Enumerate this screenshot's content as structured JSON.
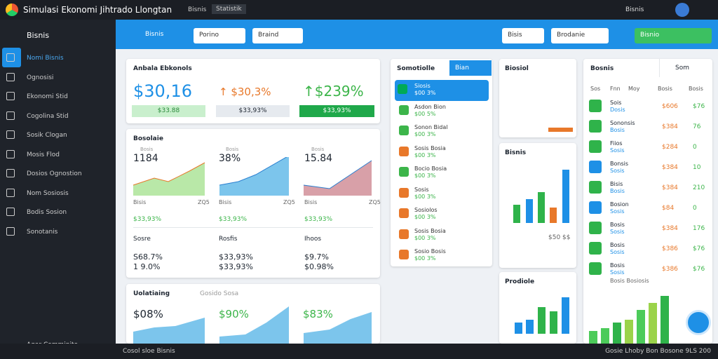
{
  "topbar": {
    "title": "Simulasi Ekonomi Jihtrado Llongtan",
    "tab1": "Bisnis",
    "tab2": "Statistik",
    "user": "Bisnis"
  },
  "sidebar": {
    "header": "Bisnis",
    "items": [
      "Nomi Bisnis",
      "Ognosisi",
      "Ekonomi Stid",
      "Cogolina Stid",
      "Sosik Clogan",
      "Mosis Flod",
      "Dosios Ognostion",
      "Nom Sosiosis",
      "Bodis Sosion",
      "Sonotanis"
    ],
    "footer": "Agar Comminite"
  },
  "header": {
    "title": "Bisnis",
    "dropdowns": [
      "Porino",
      "Braind",
      "Bisis",
      "Brodanie"
    ],
    "button": "Bisnio"
  },
  "summary": {
    "title": "Anbala Ebkonols",
    "values": [
      "$30,16",
      "↑ $30,3%",
      "↑$239%"
    ],
    "pills": [
      "$33.88",
      "$33,93%",
      "$33,93%"
    ]
  },
  "overview": {
    "title": "Bosolaie",
    "charts": [
      {
        "value": "1184",
        "label": "Bosis",
        "foot": "Bisis",
        "end": "ZQ5",
        "sub": "$33,93%"
      },
      {
        "value": "38%",
        "label": "Bosis",
        "foot": "Bisis",
        "end": "ZQ5",
        "sub": "$33,93%"
      },
      {
        "value": "15.84",
        "label": "Bosis",
        "foot": "Bisis",
        "end": "ZQ5",
        "sub": "$33,93%"
      }
    ],
    "rows": [
      {
        "name": "Sosre",
        "a": "S68.7%",
        "b": "1 9.0%"
      },
      {
        "name": "Rosfis",
        "a": "$33,93%",
        "b": "$33,93%"
      },
      {
        "name": "Ihoos",
        "a": "$9.7%",
        "b": "$0.98%"
      }
    ]
  },
  "volatility": {
    "title": "Uolatiaing",
    "subtitle": "Gosido Sosa",
    "values": [
      "$08%",
      "$90%",
      "$83%"
    ]
  },
  "list": {
    "title": "Somotiolle",
    "button": "Bian",
    "items": [
      {
        "name": "Siosis",
        "value": "$00 3%"
      },
      {
        "name": "Asdon Bion",
        "value": "$00 5%"
      },
      {
        "name": "Sonon Bidal",
        "value": "$00 3%"
      },
      {
        "name": "Sosis Bosia",
        "value": "$00 3%"
      },
      {
        "name": "Bocio Bosia",
        "value": "$00 3%"
      },
      {
        "name": "Sosis",
        "value": "$00 3%"
      },
      {
        "name": "Sosiolos",
        "value": "$00 3%"
      },
      {
        "name": "Sosis Bosia",
        "value": "$00 3%"
      },
      {
        "name": "Sosio Bosis",
        "value": "$00 3%"
      }
    ]
  },
  "side_cards": [
    {
      "title": "Biosiol"
    },
    {
      "title": "Bisnis",
      "foot": "$50 $$"
    },
    {
      "title": "Prodiole"
    }
  ],
  "table": {
    "title": "Bosnis",
    "search": "Som",
    "columns": [
      "Sos",
      "Fnn",
      "Moy",
      "Bosis",
      "Bosis"
    ],
    "rows": [
      {
        "name": "Sois",
        "sub": "Dosis",
        "a": "$606",
        "b": "$76"
      },
      {
        "name": "Sononsis",
        "sub": "Bosis",
        "a": "$384",
        "b": "76"
      },
      {
        "name": "Fiios",
        "sub": "Sosis",
        "a": "$284",
        "b": "0"
      },
      {
        "name": "Bonsis",
        "sub": "Sosis",
        "a": "$384",
        "b": "10"
      },
      {
        "name": "Bisis",
        "sub": "Bosis",
        "a": "$384",
        "b": "210"
      },
      {
        "name": "Bosion",
        "sub": "Sosis",
        "a": "$84",
        "b": "0"
      },
      {
        "name": "Bosis",
        "sub": "Sosis",
        "a": "$384",
        "b": "176"
      },
      {
        "name": "Bosis",
        "sub": "Sosis",
        "a": "$386",
        "b": "$76"
      },
      {
        "name": "Bosis",
        "sub": "Sosis",
        "a": "$386",
        "b": "$76"
      }
    ],
    "foot": "Bosis Bosiosis"
  },
  "bottombar": {
    "left": "Cosol sloe Bisnis",
    "right": "Gosie Lhoby Bon Bosone 9LS 200"
  }
}
